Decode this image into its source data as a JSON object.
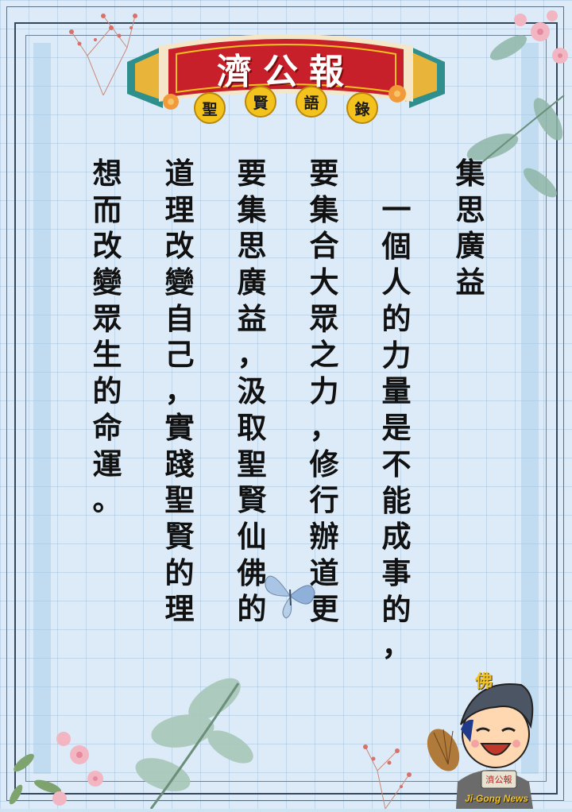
{
  "banner": {
    "title": "濟公報",
    "badges": [
      "聖",
      "賢",
      "語",
      "錄"
    ]
  },
  "poem": {
    "columns": [
      [
        "集",
        "思",
        "廣",
        "益"
      ],
      [
        "一",
        "個",
        "人",
        "的",
        "力",
        "量",
        "是",
        "不",
        "能",
        "成",
        "事",
        "的",
        "，"
      ],
      [
        "要",
        "集",
        "合",
        "大",
        "眾",
        "之",
        "力",
        "，",
        "修",
        "行",
        "辦",
        "道",
        "更"
      ],
      [
        "要",
        "集",
        "思",
        "廣",
        "益",
        "，",
        "汲",
        "取",
        "聖",
        "賢",
        "仙",
        "佛",
        "的"
      ],
      [
        "道",
        "理",
        "改",
        "變",
        "自",
        "己",
        "，",
        "實",
        "踐",
        "聖",
        "賢",
        "的",
        "理"
      ],
      [
        "想",
        "而",
        "改",
        "變",
        "眾",
        "生",
        "的",
        "命",
        "運",
        "。"
      ]
    ]
  },
  "mascot": {
    "hat_char": "佛",
    "sign_text": "濟公報",
    "brand": "Ji-Gong News"
  },
  "colors": {
    "background": "#dcebf7",
    "banner_red": "#c8202a",
    "badge_gold": "#f4c21d",
    "text": "#111111"
  }
}
